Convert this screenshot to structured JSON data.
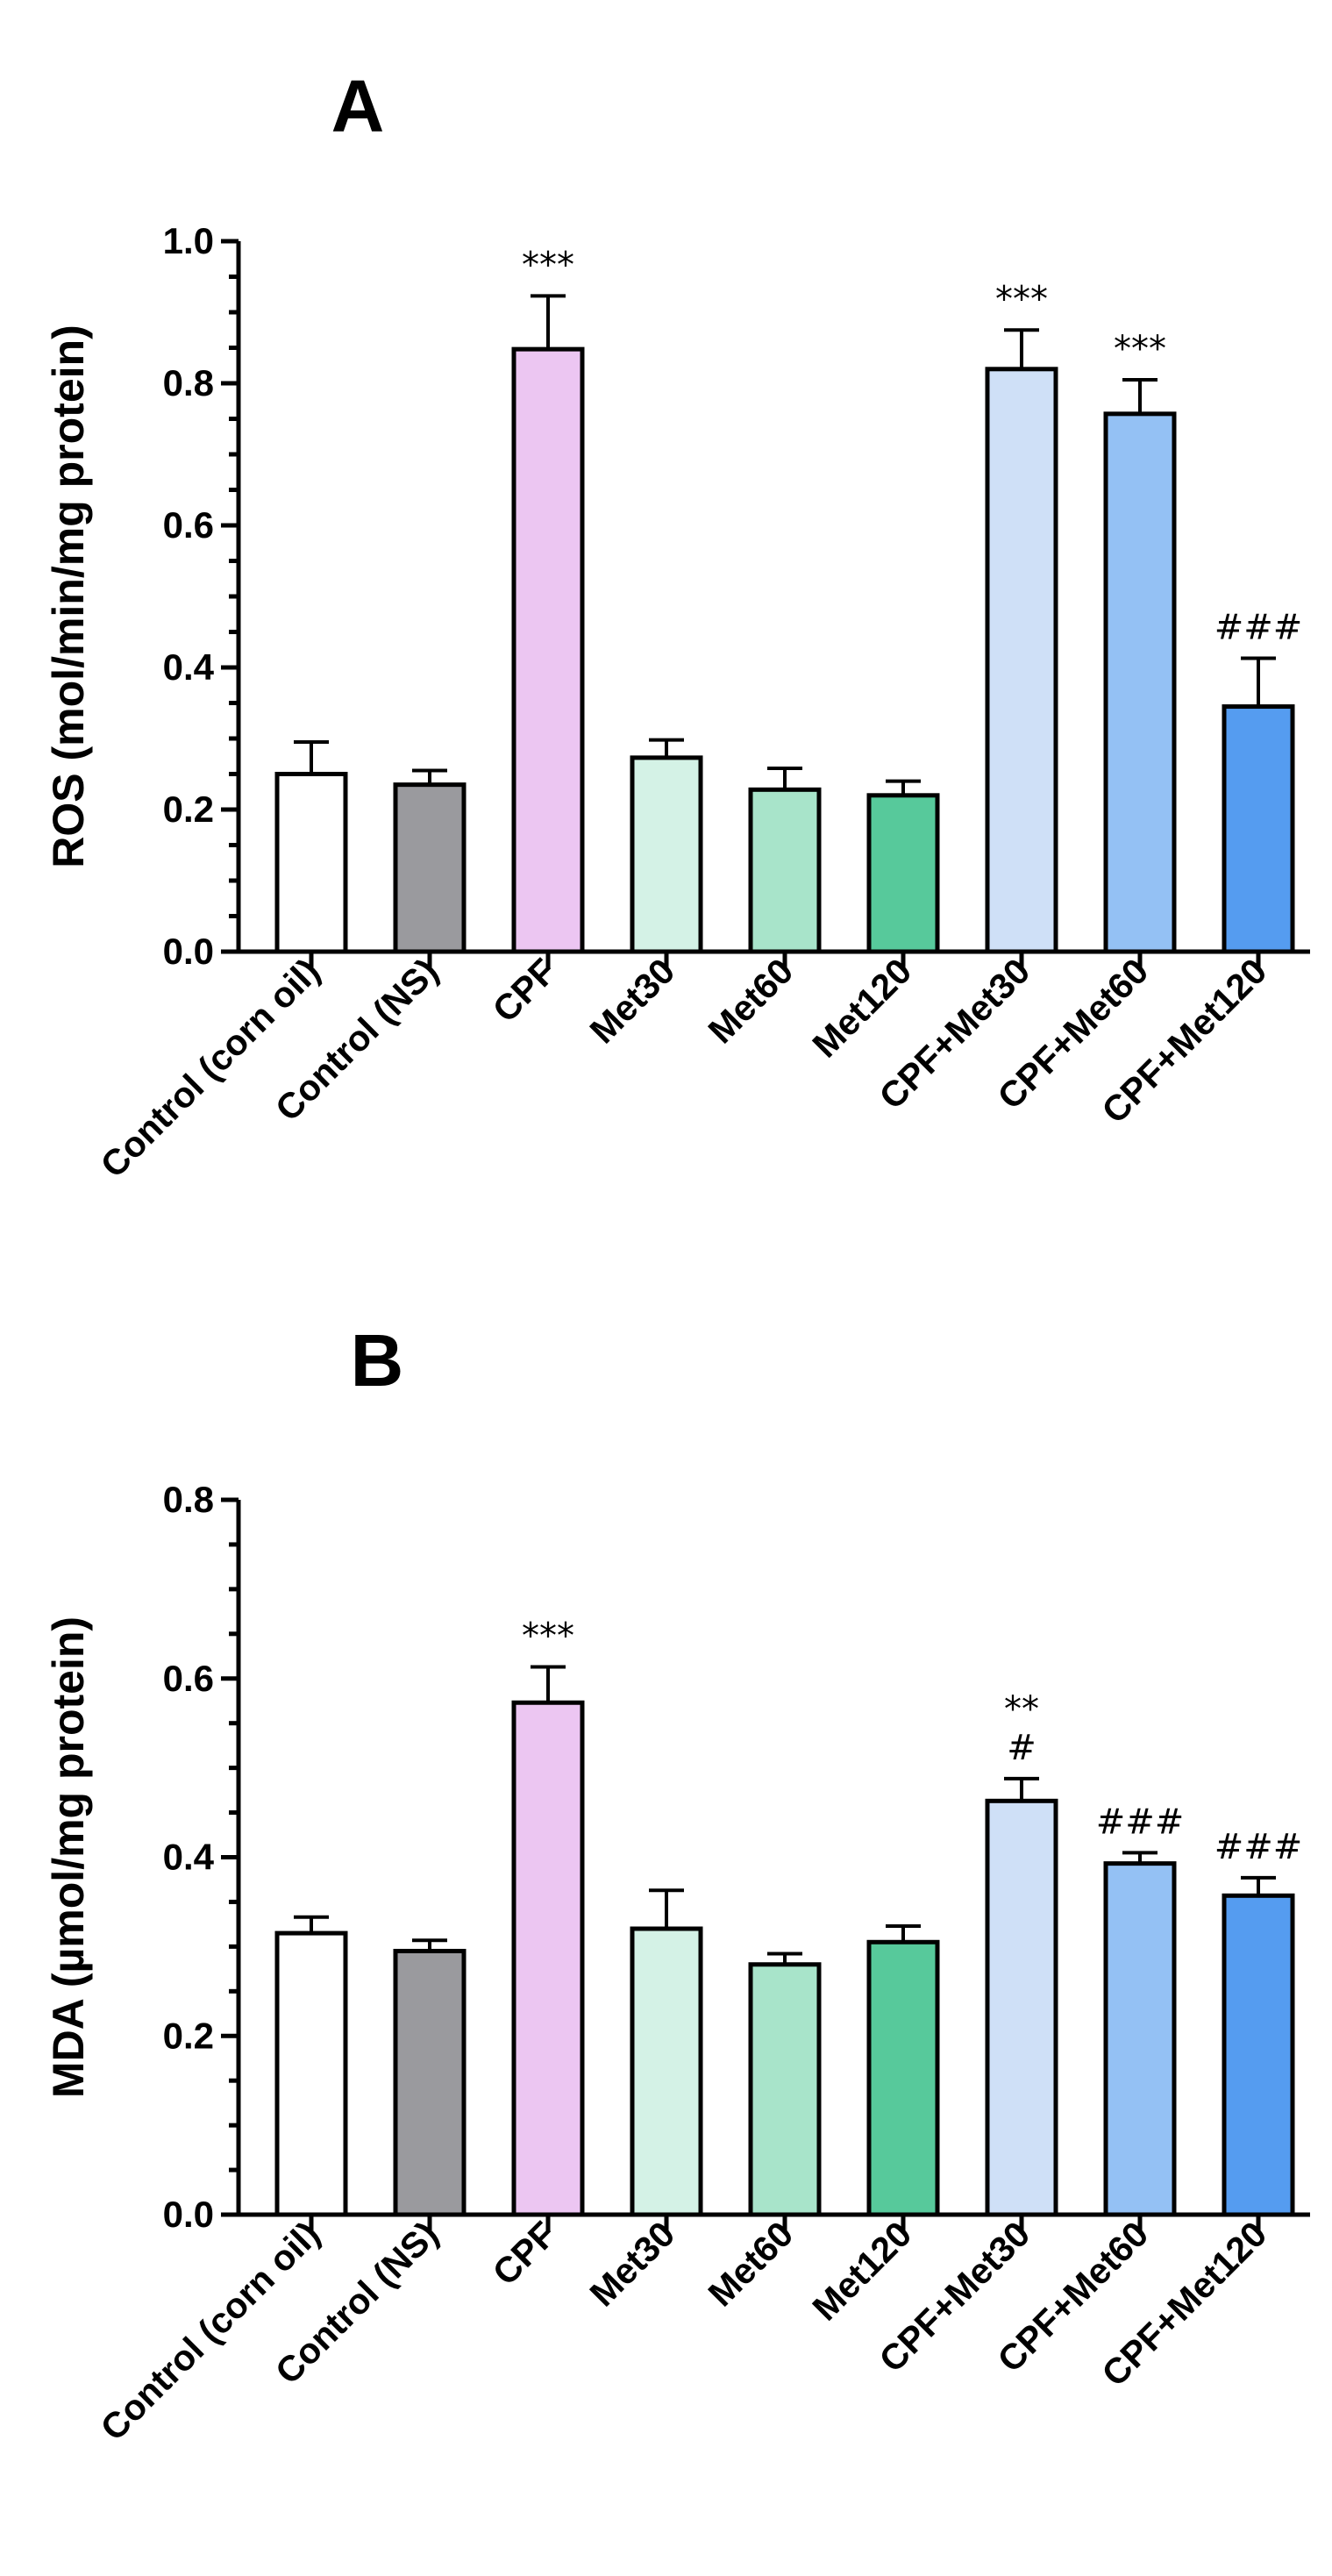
{
  "chart_data": [
    {
      "type": "bar",
      "panel": "A",
      "title": "",
      "xlabel": "",
      "ylabel": "ROS (mol/min/mg protein)",
      "ylim": [
        0,
        1.0
      ],
      "yticks": [
        "0.0",
        "0.2",
        "0.4",
        "0.6",
        "0.8",
        "1.0"
      ],
      "grid": false,
      "categories": [
        "Control (corn oil)",
        "Control (NS)",
        "CPF",
        "Met30",
        "Met60",
        "Met120",
        "CPF+Met30",
        "CPF+Met60",
        "CPF+Met120"
      ],
      "values": [
        0.25,
        0.235,
        0.848,
        0.273,
        0.228,
        0.22,
        0.82,
        0.757,
        0.345
      ],
      "errors": [
        0.045,
        0.02,
        0.075,
        0.025,
        0.03,
        0.02,
        0.055,
        0.048,
        0.068
      ],
      "colors": [
        "#ffffff",
        "#9a9a9e",
        "#ecc6f2",
        "#d4f2e6",
        "#a8e4ca",
        "#57c99b",
        "#cfe0f7",
        "#94c1f4",
        "#559cf0"
      ],
      "annotations": [
        "",
        "",
        "***",
        "",
        "",
        "",
        "***",
        "***",
        "###"
      ]
    },
    {
      "type": "bar",
      "panel": "B",
      "title": "",
      "xlabel": "",
      "ylabel": "MDA (µmol/mg protein)",
      "ylim": [
        0,
        0.8
      ],
      "yticks": [
        "0.0",
        "0.2",
        "0.4",
        "0.6",
        "0.8"
      ],
      "grid": false,
      "categories": [
        "Control (corn oil)",
        "Control (NS)",
        "CPF",
        "Met30",
        "Met60",
        "Met120",
        "CPF+Met30",
        "CPF+Met60",
        "CPF+Met120"
      ],
      "values": [
        0.315,
        0.295,
        0.573,
        0.32,
        0.28,
        0.305,
        0.463,
        0.393,
        0.357
      ],
      "errors": [
        0.018,
        0.012,
        0.04,
        0.043,
        0.012,
        0.018,
        0.025,
        0.012,
        0.02
      ],
      "colors": [
        "#ffffff",
        "#9a9a9e",
        "#ecc6f2",
        "#d4f2e6",
        "#a8e4ca",
        "#57c99b",
        "#cfe0f7",
        "#94c1f4",
        "#559cf0"
      ],
      "annotations": [
        "",
        "",
        "***",
        "",
        "",
        "",
        "**\n#",
        "###",
        "###"
      ]
    }
  ]
}
